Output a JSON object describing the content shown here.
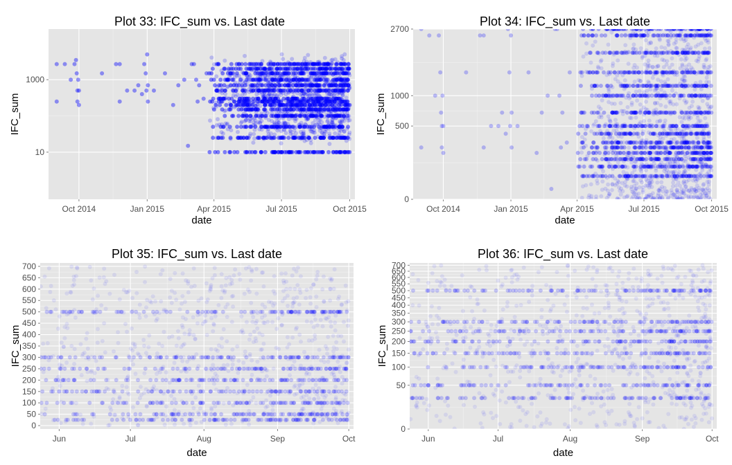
{
  "colors": {
    "panel": "#e5e5e5",
    "grid_major": "#ffffff",
    "grid_minor": "#f2f2f2",
    "point": "#0000ff",
    "tick_text": "#4d4d4d"
  },
  "chart_data": [
    {
      "type": "scatter",
      "title": "Plot 33: IFC_sum vs. Last date",
      "xlabel": "date",
      "ylabel": "IFC_sum",
      "y_scale": "log10",
      "xlim": [
        "2014-08-21",
        "2015-10-08"
      ],
      "ylim": [
        0.5,
        25000
      ],
      "x_ticks": [
        {
          "at": "2014-10-01",
          "label": "Oct 2014"
        },
        {
          "at": "2015-01-01",
          "label": "Jan 2015"
        },
        {
          "at": "2015-04-01",
          "label": "Apr 2015"
        },
        {
          "at": "2015-07-01",
          "label": "Jul 2015"
        },
        {
          "at": "2015-10-01",
          "label": "Oct 2015"
        }
      ],
      "y_ticks": [
        {
          "at": 10,
          "label": "10"
        },
        {
          "at": 1000,
          "label": "1000"
        }
      ],
      "point_alpha": 0.2,
      "dense_region": {
        "x_from": "2015-03-25",
        "x_to": "2015-10-01",
        "y_from": 5,
        "y_to": 12000
      },
      "bands": [
        {
          "y": 2700
        },
        {
          "y": 2000
        },
        {
          "y": 1500
        },
        {
          "y": 1000
        },
        {
          "y": 700
        },
        {
          "y": 500
        },
        {
          "y": 300
        },
        {
          "y": 250
        },
        {
          "y": 200
        },
        {
          "y": 150
        },
        {
          "y": 100
        },
        {
          "y": 50
        },
        {
          "y": 25
        },
        {
          "y": 10
        }
      ],
      "sparse_points": [
        {
          "x": "2014-09-01",
          "y": 250
        },
        {
          "x": "2014-09-01",
          "y": 2700
        },
        {
          "x": "2014-09-12",
          "y": 2700
        },
        {
          "x": "2014-09-20",
          "y": 1000
        },
        {
          "x": "2014-09-25",
          "y": 2700
        },
        {
          "x": "2014-09-27",
          "y": 3500
        },
        {
          "x": "2014-09-28",
          "y": 1500
        },
        {
          "x": "2014-09-29",
          "y": 500
        },
        {
          "x": "2014-09-29",
          "y": 250
        },
        {
          "x": "2014-09-30",
          "y": 1000
        },
        {
          "x": "2014-10-01",
          "y": 500
        },
        {
          "x": "2014-10-01",
          "y": 200
        },
        {
          "x": "2014-11-01",
          "y": 1500
        },
        {
          "x": "2014-11-20",
          "y": 2700
        },
        {
          "x": "2014-11-25",
          "y": 2700
        },
        {
          "x": "2014-11-25",
          "y": 250
        },
        {
          "x": "2014-12-05",
          "y": 500
        },
        {
          "x": "2014-12-15",
          "y": 500
        },
        {
          "x": "2014-12-20",
          "y": 700
        },
        {
          "x": "2014-12-25",
          "y": 400
        },
        {
          "x": "2014-12-28",
          "y": 2700
        },
        {
          "x": "2014-12-30",
          "y": 1500
        },
        {
          "x": "2014-12-31",
          "y": 500
        },
        {
          "x": "2015-01-01",
          "y": 5000
        },
        {
          "x": "2015-01-02",
          "y": 700
        },
        {
          "x": "2015-01-02",
          "y": 250
        },
        {
          "x": "2015-01-10",
          "y": 500
        },
        {
          "x": "2015-01-25",
          "y": 1500
        },
        {
          "x": "2015-02-05",
          "y": 200
        },
        {
          "x": "2015-02-12",
          "y": 700
        },
        {
          "x": "2015-02-20",
          "y": 1000
        },
        {
          "x": "2015-02-25",
          "y": 15
        },
        {
          "x": "2015-03-02",
          "y": 2700
        },
        {
          "x": "2015-03-05",
          "y": 2700
        },
        {
          "x": "2015-03-08",
          "y": 1000
        },
        {
          "x": "2015-03-10",
          "y": 250
        },
        {
          "x": "2015-03-12",
          "y": 700
        },
        {
          "x": "2015-03-18",
          "y": 300
        },
        {
          "x": "2015-03-22",
          "y": 1500
        }
      ]
    },
    {
      "type": "scatter",
      "title": "Plot 34: IFC_sum vs. Last date",
      "xlabel": "date",
      "ylabel": "IFC_sum",
      "y_scale": "sqrt",
      "xlim": [
        "2014-08-21",
        "2015-10-08"
      ],
      "ylim": [
        0,
        2700
      ],
      "x_ticks": [
        {
          "at": "2014-10-01",
          "label": "Oct 2014"
        },
        {
          "at": "2015-01-01",
          "label": "Jan 2015"
        },
        {
          "at": "2015-04-01",
          "label": "Apr 2015"
        },
        {
          "at": "2015-07-01",
          "label": "Jul 2015"
        },
        {
          "at": "2015-10-01",
          "label": "Oct 2015"
        }
      ],
      "y_ticks": [
        {
          "at": 0,
          "label": "0"
        },
        {
          "at": 500,
          "label": "500"
        },
        {
          "at": 1000,
          "label": "1000"
        },
        {
          "at": 2700,
          "label": "2700"
        }
      ],
      "point_alpha": 0.12,
      "dense_region": {
        "x_from": "2015-04-01",
        "x_to": "2015-10-01",
        "y_from": 0,
        "y_to": 2700
      },
      "bands": [
        {
          "y": 2700
        },
        {
          "y": 2500
        },
        {
          "y": 2000
        },
        {
          "y": 1500
        },
        {
          "y": 1200
        },
        {
          "y": 1000
        },
        {
          "y": 700
        },
        {
          "y": 500
        },
        {
          "y": 400
        },
        {
          "y": 300
        },
        {
          "y": 250
        },
        {
          "y": 200
        },
        {
          "y": 150
        },
        {
          "y": 100
        },
        {
          "y": 50
        }
      ],
      "sparse_points": [
        {
          "x": "2014-09-01",
          "y": 250
        },
        {
          "x": "2014-09-01",
          "y": 2700
        },
        {
          "x": "2014-09-12",
          "y": 2500
        },
        {
          "x": "2014-09-20",
          "y": 1000
        },
        {
          "x": "2014-09-25",
          "y": 2500
        },
        {
          "x": "2014-09-27",
          "y": 1500
        },
        {
          "x": "2014-09-28",
          "y": 700
        },
        {
          "x": "2014-09-29",
          "y": 500
        },
        {
          "x": "2014-09-29",
          "y": 250
        },
        {
          "x": "2014-09-30",
          "y": 1000
        },
        {
          "x": "2014-10-01",
          "y": 500
        },
        {
          "x": "2014-10-01",
          "y": 200
        },
        {
          "x": "2014-11-01",
          "y": 1500
        },
        {
          "x": "2014-11-20",
          "y": 2500
        },
        {
          "x": "2014-11-25",
          "y": 2500
        },
        {
          "x": "2014-11-25",
          "y": 250
        },
        {
          "x": "2014-12-05",
          "y": 500
        },
        {
          "x": "2014-12-15",
          "y": 500
        },
        {
          "x": "2014-12-20",
          "y": 700
        },
        {
          "x": "2014-12-25",
          "y": 400
        },
        {
          "x": "2014-12-28",
          "y": 2700
        },
        {
          "x": "2014-12-30",
          "y": 1500
        },
        {
          "x": "2014-12-31",
          "y": 500
        },
        {
          "x": "2015-01-01",
          "y": 2500
        },
        {
          "x": "2015-01-02",
          "y": 700
        },
        {
          "x": "2015-01-02",
          "y": 250
        },
        {
          "x": "2015-01-10",
          "y": 500
        },
        {
          "x": "2015-01-25",
          "y": 1500
        },
        {
          "x": "2015-02-05",
          "y": 200
        },
        {
          "x": "2015-02-12",
          "y": 700
        },
        {
          "x": "2015-02-20",
          "y": 1000
        },
        {
          "x": "2015-02-25",
          "y": 10
        },
        {
          "x": "2015-03-02",
          "y": 2700
        },
        {
          "x": "2015-03-05",
          "y": 2700
        },
        {
          "x": "2015-03-08",
          "y": 1000
        },
        {
          "x": "2015-03-10",
          "y": 250
        },
        {
          "x": "2015-03-12",
          "y": 700
        },
        {
          "x": "2015-03-18",
          "y": 300
        },
        {
          "x": "2015-03-22",
          "y": 1500
        }
      ]
    },
    {
      "type": "scatter",
      "title": "Plot 35: IFC_sum vs. Last date",
      "xlabel": "date",
      "ylabel": "IFC_sum",
      "y_scale": "linear",
      "xlim": [
        "2015-05-24",
        "2015-10-03"
      ],
      "ylim": [
        -15,
        715
      ],
      "x_ticks": [
        {
          "at": "2015-06-01",
          "label": "Jun"
        },
        {
          "at": "2015-07-01",
          "label": "Jul"
        },
        {
          "at": "2015-08-01",
          "label": "Aug"
        },
        {
          "at": "2015-09-01",
          "label": "Sep"
        },
        {
          "at": "2015-10-01",
          "label": "Oct"
        }
      ],
      "y_ticks": [
        {
          "at": 0,
          "label": "0"
        },
        {
          "at": 50,
          "label": "50"
        },
        {
          "at": 100,
          "label": "100"
        },
        {
          "at": 150,
          "label": "150"
        },
        {
          "at": 200,
          "label": "200"
        },
        {
          "at": 250,
          "label": "250"
        },
        {
          "at": 300,
          "label": "300"
        },
        {
          "at": 350,
          "label": "350"
        },
        {
          "at": 400,
          "label": "400"
        },
        {
          "at": 450,
          "label": "450"
        },
        {
          "at": 500,
          "label": "500"
        },
        {
          "at": 550,
          "label": "550"
        },
        {
          "at": 600,
          "label": "600"
        },
        {
          "at": 650,
          "label": "650"
        },
        {
          "at": 700,
          "label": "700"
        }
      ],
      "point_alpha": 0.08,
      "dense_region": {
        "x_from": "2015-05-24",
        "x_to": "2015-10-01",
        "y_from": 0,
        "y_to": 700
      },
      "bands": [
        {
          "y": 500
        },
        {
          "y": 300
        },
        {
          "y": 250
        },
        {
          "y": 200
        },
        {
          "y": 150
        },
        {
          "y": 100
        },
        {
          "y": 50
        },
        {
          "y": 25
        }
      ],
      "sparse_points": []
    },
    {
      "type": "scatter",
      "title": "Plot 36: IFC_sum vs. Last date",
      "xlabel": "date",
      "ylabel": "IFC_sum",
      "y_scale": "sqrt",
      "xlim": [
        "2015-05-24",
        "2015-10-03"
      ],
      "ylim": [
        0,
        720
      ],
      "x_ticks": [
        {
          "at": "2015-06-01",
          "label": "Jun"
        },
        {
          "at": "2015-07-01",
          "label": "Jul"
        },
        {
          "at": "2015-08-01",
          "label": "Aug"
        },
        {
          "at": "2015-09-01",
          "label": "Sep"
        },
        {
          "at": "2015-10-01",
          "label": "Oct"
        }
      ],
      "y_ticks": [
        {
          "at": 0,
          "label": "0"
        },
        {
          "at": 50,
          "label": "50"
        },
        {
          "at": 100,
          "label": "100"
        },
        {
          "at": 150,
          "label": "150"
        },
        {
          "at": 200,
          "label": "200"
        },
        {
          "at": 250,
          "label": "250"
        },
        {
          "at": 300,
          "label": "300"
        },
        {
          "at": 350,
          "label": "350"
        },
        {
          "at": 400,
          "label": "400"
        },
        {
          "at": 450,
          "label": "450"
        },
        {
          "at": 500,
          "label": "500"
        },
        {
          "at": 550,
          "label": "550"
        },
        {
          "at": 600,
          "label": "600"
        },
        {
          "at": 650,
          "label": "650"
        },
        {
          "at": 700,
          "label": "700"
        }
      ],
      "point_alpha": 0.08,
      "dense_region": {
        "x_from": "2015-05-24",
        "x_to": "2015-10-01",
        "y_from": 0,
        "y_to": 700
      },
      "bands": [
        {
          "y": 500
        },
        {
          "y": 300
        },
        {
          "y": 250
        },
        {
          "y": 200
        },
        {
          "y": 150
        },
        {
          "y": 100
        },
        {
          "y": 50
        },
        {
          "y": 25
        }
      ],
      "sparse_points": []
    }
  ]
}
